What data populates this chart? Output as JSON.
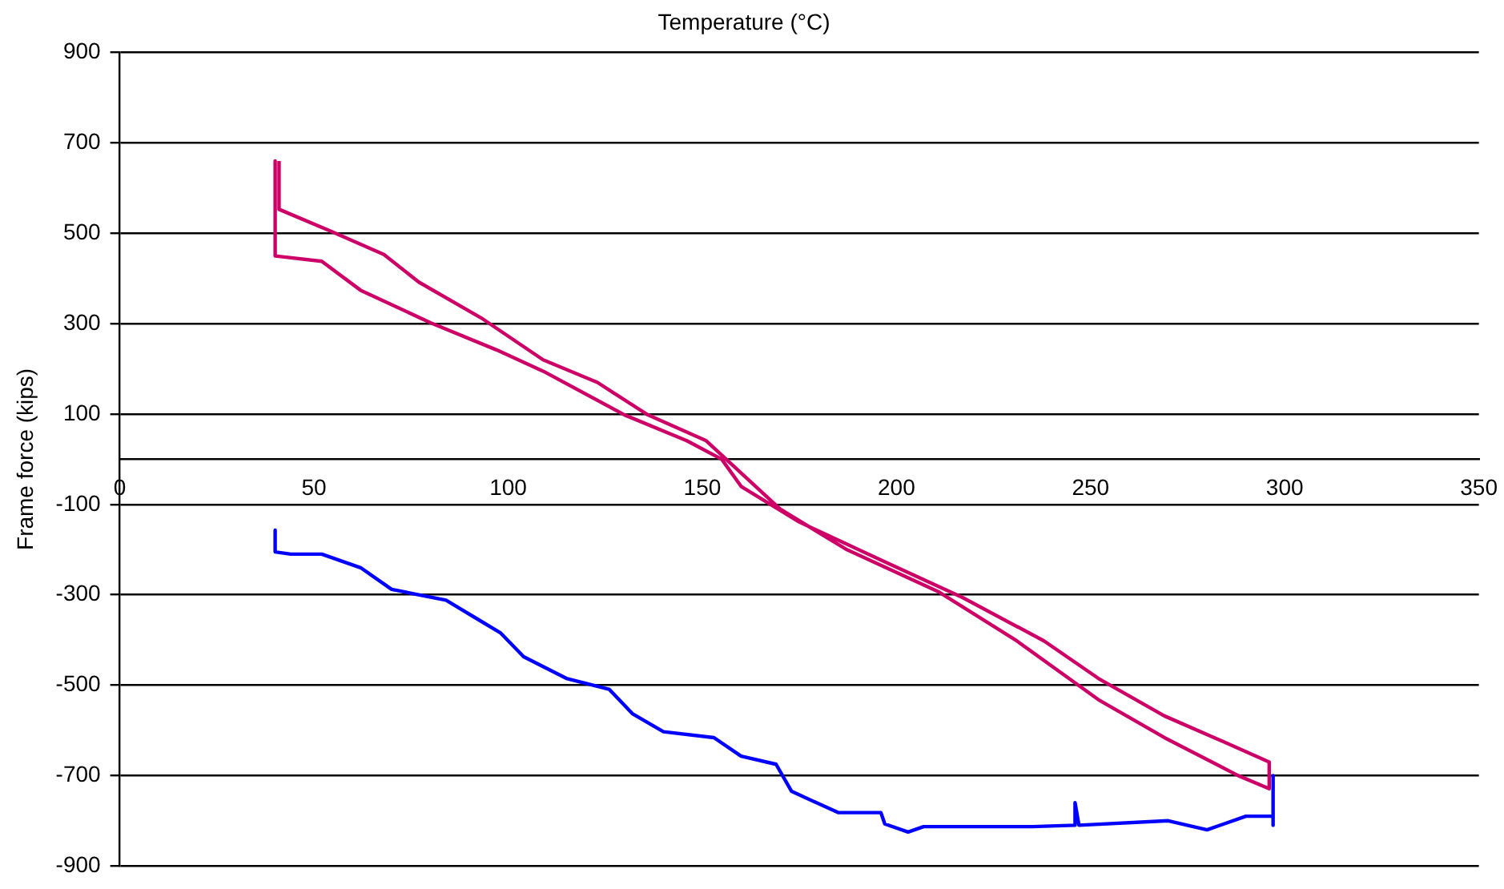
{
  "chart_data": {
    "type": "line",
    "xlabel": "Temperature (°C)",
    "ylabel": "Frame force (kips)",
    "xlim": [
      0,
      350
    ],
    "xticks": [
      0,
      50,
      100,
      150,
      200,
      250,
      300,
      350
    ],
    "ylim": [
      -900,
      900
    ],
    "yticks": [
      -900,
      -700,
      -500,
      -300,
      -100,
      100,
      300,
      500,
      700,
      900
    ],
    "grid": "y",
    "legend": false,
    "marker": "none",
    "line_style": "solid",
    "series": [
      {
        "color": "#cc0066",
        "x": [
          40,
          40,
          41,
          52,
          62,
          80,
          97,
          109,
          130,
          146,
          155,
          160,
          175,
          196,
          217,
          238,
          252,
          269,
          285,
          296,
          296,
          288,
          269,
          252,
          231,
          211,
          187,
          170,
          151,
          136,
          123,
          109,
          93,
          77,
          68,
          54,
          41,
          41
        ],
        "values": [
          660,
          450,
          449,
          438,
          374,
          302,
          242,
          195,
          98,
          41,
          0,
          -60,
          -139,
          -223,
          -306,
          -402,
          -485,
          -568,
          -628,
          -670,
          -729,
          -700,
          -616,
          -532,
          -402,
          -294,
          -199,
          -110,
          41,
          98,
          170,
          220,
          313,
          392,
          453,
          506,
          553,
          660
        ]
      },
      {
        "color": "#0000ff",
        "x": [
          40,
          40,
          44,
          52,
          62,
          70,
          84,
          91,
          98,
          104,
          115,
          126,
          132,
          140,
          153,
          160,
          169,
          173,
          185,
          196,
          197,
          203,
          207,
          221,
          235,
          246,
          246,
          247,
          270,
          280,
          290,
          297,
          297,
          297
        ],
        "values": [
          -157,
          -205,
          -210,
          -210,
          -240,
          -288,
          -312,
          -348,
          -384,
          -437,
          -485,
          -509,
          -563,
          -603,
          -616,
          -657,
          -675,
          -735,
          -782,
          -782,
          -807,
          -825,
          -813,
          -813,
          -813,
          -810,
          -760,
          -810,
          -800,
          -820,
          -790,
          -790,
          -700,
          -810
        ]
      }
    ]
  }
}
